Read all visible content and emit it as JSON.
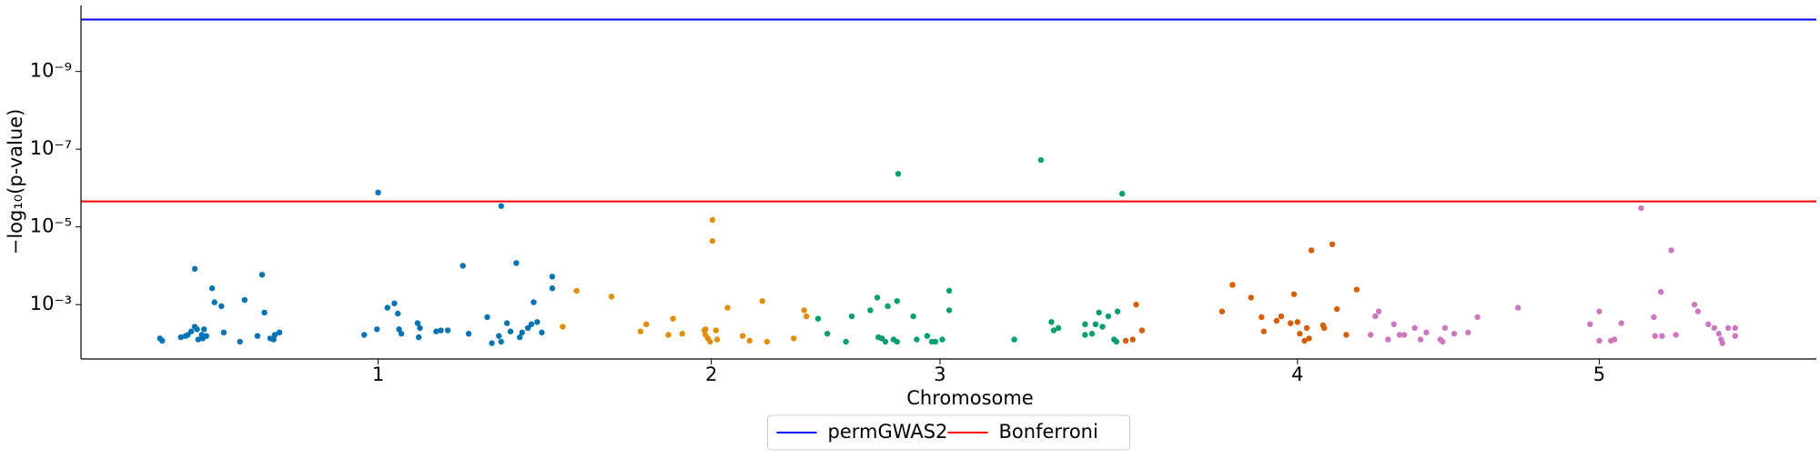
{
  "chart_data": {
    "type": "scatter",
    "xlabel": "Chromosome",
    "ylabel": "−log₁₀(p-value)",
    "log_y": true,
    "xlim": [
      0,
      1495
    ],
    "ylim": [
      0.025,
      2e-11
    ],
    "xticks": [
      {
        "value": 256,
        "label": "1"
      },
      {
        "value": 543,
        "label": "2"
      },
      {
        "value": 740,
        "label": "3"
      },
      {
        "value": 1048,
        "label": "4"
      },
      {
        "value": 1308,
        "label": "5"
      }
    ],
    "yticks": [
      {
        "value": 1e-09,
        "label": "10⁻⁹"
      },
      {
        "value": 1e-07,
        "label": "10⁻⁷"
      },
      {
        "value": 1e-05,
        "label": "10⁻⁵"
      },
      {
        "value": 0.001,
        "label": "10⁻³"
      }
    ],
    "legend": "lower center",
    "hlines": [
      {
        "name": "permGWAS2",
        "color": "#0000ff",
        "value": 4.6e-11
      },
      {
        "name": "Bonferroni",
        "color": "#ff0000",
        "value": 2.2e-06
      }
    ],
    "series": [
      {
        "color": "#0173b2",
        "x": [
          68,
          70,
          98,
          86,
          92,
          95,
          100,
          101,
          104,
          106,
          108,
          113,
          115,
          121,
          123,
          137,
          141,
          152,
          156,
          163,
          166,
          167,
          171,
          98,
          90,
          105,
          158,
          244,
          256,
          255,
          264,
          270,
          273,
          274,
          276,
          290,
          292,
          291,
          306,
          310,
          316,
          329,
          334,
          350,
          354,
          360,
          362,
          367,
          370,
          375,
          378,
          380,
          385,
          388,
          390,
          393,
          397,
          406,
          406,
          362
        ],
        "values": [
          0.0074,
          0.0085,
          0.00012,
          0.0069,
          0.006,
          0.0049,
          0.0043,
          0.0079,
          0.006,
          0.0043,
          0.0064,
          0.00038,
          0.00087,
          0.0011,
          0.0052,
          0.009,
          0.00076,
          0.0064,
          0.00017,
          0.0074,
          0.0079,
          0.006,
          0.0052,
          0.0037,
          0.0064,
          0.0074,
          0.0016,
          0.006,
          1.3e-06,
          0.0043,
          0.0012,
          0.00093,
          0.0017,
          0.0043,
          0.0056,
          0.003,
          0.004,
          0.0069,
          0.0049,
          0.0046,
          0.0046,
          0.0001,
          0.0056,
          0.0021,
          0.0098,
          0.0064,
          0.009,
          0.003,
          0.0049,
          8.5e-05,
          0.0069,
          0.0052,
          0.004,
          0.0032,
          0.00087,
          0.0028,
          0.0052,
          0.00019,
          0.00038,
          2.9e-06
        ]
      },
      {
        "color": "#de8f05",
        "x": [
          415,
          427,
          457,
          482,
          487,
          506,
          510,
          518,
          537,
          538,
          540,
          542,
          544,
          544,
          548,
          547,
          557,
          570,
          576,
          587,
          591,
          614,
          623,
          625,
          538
        ],
        "values": [
          0.0037,
          0.00044,
          0.00062,
          0.0049,
          0.0032,
          0.006,
          0.0023,
          0.0056,
          0.0046,
          0.006,
          0.0074,
          0.009,
          6.6e-06,
          2.3e-05,
          0.0079,
          0.0046,
          0.0012,
          0.0064,
          0.0085,
          0.00081,
          0.009,
          0.0074,
          0.0014,
          0.002,
          0.0043
        ]
      },
      {
        "color": "#029e73",
        "x": [
          635,
          643,
          659,
          664,
          680,
          686,
          687,
          690,
          693,
          695,
          700,
          703,
          704,
          703,
          717,
          720,
          729,
          733,
          736,
          742,
          748,
          748,
          804,
          827,
          836,
          838,
          842,
          865,
          865,
          871,
          874,
          877,
          880,
          885,
          890,
          892,
          893,
          897
        ],
        "values": [
          0.0023,
          0.0056,
          0.009,
          0.002,
          0.0014,
          0.00066,
          0.0069,
          0.0074,
          0.009,
          0.0011,
          0.0079,
          0.009,
          4.3e-07,
          0.00081,
          0.002,
          0.0079,
          0.0064,
          0.009,
          0.009,
          0.0079,
          0.0014,
          0.00044,
          0.0079,
          1.9e-07,
          0.0028,
          0.0046,
          0.004,
          0.0032,
          0.006,
          0.0056,
          0.0032,
          0.0016,
          0.0037,
          0.002,
          0.0079,
          0.009,
          0.0015,
          1.4e-06
        ]
      },
      {
        "color": "#d55e00",
        "x": [
          900,
          906,
          909,
          914,
          983,
          992,
          1008,
          1017,
          1019,
          1030,
          1034,
          1042,
          1045,
          1048,
          1050,
          1054,
          1056,
          1058,
          1060,
          1070,
          1071,
          1078,
          1082,
          1090,
          1099
        ],
        "values": [
          0.0085,
          0.0079,
          0.001,
          0.0046,
          0.0015,
          0.00031,
          0.00066,
          0.0021,
          0.0049,
          0.0026,
          0.002,
          0.003,
          0.00054,
          0.0028,
          0.0056,
          0.0085,
          0.004,
          0.0074,
          4e-05,
          0.0034,
          0.004,
          2.8e-05,
          0.0013,
          0.006,
          0.00041
        ]
      },
      {
        "color": "#cc78bc",
        "x": [
          1111,
          1115,
          1118,
          1126,
          1131,
          1136,
          1140,
          1149,
          1154,
          1159,
          1171,
          1173,
          1175,
          1183,
          1195,
          1203,
          1238,
          1300,
          1308,
          1308,
          1318,
          1321,
          1327,
          1344,
          1355,
          1356,
          1361,
          1362,
          1370,
          1374,
          1390,
          1393,
          1402,
          1407,
          1411,
          1413,
          1414,
          1419,
          1425,
          1425
        ],
        "values": [
          0.006,
          0.002,
          0.0015,
          0.0079,
          0.0032,
          0.006,
          0.006,
          0.004,
          0.0079,
          0.0052,
          0.0079,
          0.009,
          0.004,
          0.0056,
          0.0052,
          0.0021,
          0.0012,
          0.0032,
          0.0015,
          0.0085,
          0.0085,
          0.0079,
          0.003,
          3.3e-06,
          0.0021,
          0.0064,
          0.00047,
          0.0064,
          4e-05,
          0.006,
          0.001,
          0.0015,
          0.0032,
          0.004,
          0.0056,
          0.0079,
          0.0098,
          0.004,
          0.004,
          0.0064
        ]
      }
    ]
  }
}
